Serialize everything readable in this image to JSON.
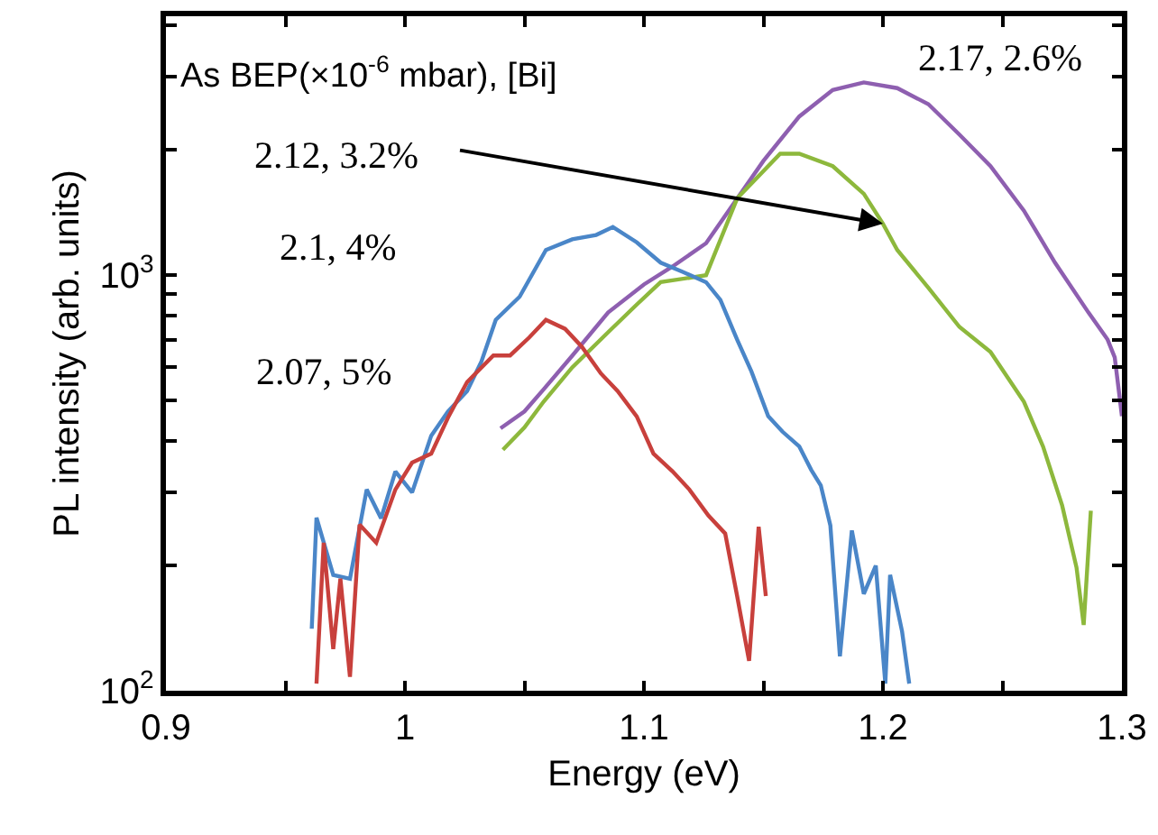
{
  "chart_data": {
    "type": "line",
    "xlabel": "Energy (eV)",
    "ylabel": "PL intensity (arb. units)",
    "legend_title": "As BEP(×10$^{-6}$ mbar), [Bi]",
    "log": "y",
    "legend": false,
    "marker": "none",
    "line_style": "solid",
    "xlim": [
      0.9,
      1.3
    ],
    "ylim": [
      100,
      4200
    ],
    "xticks": [
      0.9,
      {
        "value": 0.95,
        "label": null
      },
      1,
      {
        "value": 1.05,
        "label": null
      },
      1.1,
      {
        "value": 1.15,
        "label": null
      },
      1.2,
      {
        "value": 1.25,
        "label": null
      },
      1.3
    ],
    "yticks": [
      {
        "value": 100,
        "label": "10$^{2}$"
      },
      {
        "value": 200,
        "label": null
      },
      {
        "value": 300,
        "label": null
      },
      {
        "value": 400,
        "label": null
      },
      {
        "value": 500,
        "label": null
      },
      {
        "value": 600,
        "label": null
      },
      {
        "value": 700,
        "label": null
      },
      {
        "value": 800,
        "label": null
      },
      {
        "value": 900,
        "label": null
      },
      {
        "value": 1000,
        "label": "10$^{3}$"
      },
      {
        "value": 2000,
        "label": null
      },
      {
        "value": 3000,
        "label": null
      },
      {
        "value": 4000,
        "label": null
      }
    ],
    "series": [
      {
        "name": "2.17, 2.6%",
        "color": "#8e5fb0",
        "x": [
          1.04,
          1.05,
          1.058,
          1.07,
          1.085,
          1.1,
          1.112,
          1.126,
          1.138,
          1.15,
          1.165,
          1.179,
          1.192,
          1.206,
          1.219,
          1.232,
          1.245,
          1.259,
          1.272,
          1.286,
          1.294,
          1.297,
          1.3
        ],
        "values": [
          428,
          470,
          531,
          640,
          813,
          950,
          1050,
          1194,
          1500,
          1884,
          2410,
          2790,
          2910,
          2820,
          2580,
          2180,
          1830,
          1430,
          1072,
          813,
          700,
          634,
          458
        ]
      },
      {
        "name": "2.12, 3.2%",
        "color": "#8db83c",
        "x": [
          1.041,
          1.05,
          1.058,
          1.07,
          1.085,
          1.097,
          1.107,
          1.126,
          1.139,
          1.157,
          1.165,
          1.179,
          1.192,
          1.2,
          1.206,
          1.219,
          1.232,
          1.245,
          1.259,
          1.267,
          1.275,
          1.281,
          1.284,
          1.287
        ],
        "values": [
          380,
          430,
          496,
          600,
          729,
          850,
          962,
          1000,
          1530,
          1960,
          1960,
          1830,
          1570,
          1330,
          1150,
          933,
          751,
          654,
          496,
          387,
          279,
          198,
          144,
          271
        ]
      },
      {
        "name": "2.1, 4%",
        "color": "#4a86c8",
        "x": [
          0.961,
          0.963,
          0.97,
          0.977,
          0.984,
          0.99,
          0.996,
          1.003,
          1.011,
          1.018,
          1.026,
          1.032,
          1.038,
          1.048,
          1.059,
          1.07,
          1.08,
          1.087,
          1.097,
          1.107,
          1.116,
          1.126,
          1.132,
          1.139,
          1.145,
          1.152,
          1.158,
          1.165,
          1.17,
          1.174,
          1.178,
          1.182,
          1.187,
          1.192,
          1.197,
          1.201,
          1.203,
          1.208,
          1.211
        ],
        "values": [
          141,
          261,
          190,
          186,
          305,
          260,
          337,
          300,
          411,
          470,
          526,
          620,
          781,
          888,
          1150,
          1220,
          1250,
          1306,
          1200,
          1072,
          1020,
          962,
          872,
          700,
          586,
          458,
          420,
          387,
          340,
          312,
          250,
          121,
          243,
          171,
          200,
          104,
          190,
          139,
          104
        ]
      },
      {
        "name": "2.07, 5%",
        "color": "#c8403c",
        "x": [
          0.963,
          0.966,
          0.97,
          0.973,
          0.977,
          0.981,
          0.988,
          0.996,
          1.003,
          1.011,
          1.018,
          1.026,
          1.037,
          1.044,
          1.052,
          1.059,
          1.067,
          1.074,
          1.082,
          1.089,
          1.097,
          1.104,
          1.112,
          1.119,
          1.127,
          1.134,
          1.139,
          1.144,
          1.148,
          1.151
        ],
        "values": [
          104,
          227,
          126,
          186,
          108,
          251,
          227,
          305,
          354,
          372,
          454,
          553,
          641,
          641,
          708,
          781,
          743,
          673,
          580,
          526,
          457,
          372,
          337,
          305,
          264,
          239,
          169,
          118,
          248,
          169
        ]
      }
    ]
  }
}
